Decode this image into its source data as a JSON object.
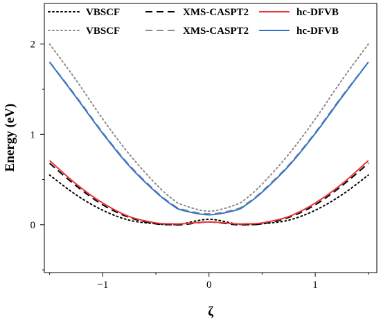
{
  "chart_data": {
    "type": "line",
    "xlabel": "ζ",
    "ylabel": "Energy (eV)",
    "xlim": [
      -1.55,
      1.58
    ],
    "ylim": [
      -0.53,
      2.45
    ],
    "x_ticks": [
      -1,
      0,
      1
    ],
    "x_tick_labels": [
      "−1",
      "0",
      "1"
    ],
    "y_ticks": [
      0,
      1,
      2
    ],
    "y_tick_labels": [
      "0",
      "1",
      "2"
    ],
    "grid": false,
    "legend": {
      "placement": "top",
      "columns": 3,
      "entries": [
        "VBSCF",
        "XMS-CASPT2",
        "hc-DFVB",
        "VBSCF",
        "XMS-CASPT2",
        "hc-DFVB"
      ]
    },
    "x": [
      -1.5,
      -1.25,
      -1.0,
      -0.75,
      -0.5,
      -0.35,
      -0.25,
      0.0,
      0.25,
      0.35,
      0.5,
      0.75,
      1.0,
      1.25,
      1.5
    ],
    "series": [
      {
        "name": "VBSCF",
        "state": "ground",
        "color": "#000000",
        "style": "dotted",
        "values": [
          0.55,
          0.33,
          0.16,
          0.05,
          0.01,
          0.0,
          0.01,
          0.06,
          0.01,
          0.0,
          0.01,
          0.05,
          0.16,
          0.33,
          0.55
        ]
      },
      {
        "name": "XMS-CASPT2",
        "state": "ground",
        "color": "#000000",
        "style": "dashed",
        "values": [
          0.68,
          0.43,
          0.22,
          0.08,
          0.01,
          0.0,
          0.0,
          0.03,
          0.0,
          0.0,
          0.01,
          0.08,
          0.22,
          0.43,
          0.68
        ]
      },
      {
        "name": "hc-DFVB",
        "state": "ground",
        "color": "#e8363c",
        "style": "solid",
        "values": [
          0.71,
          0.45,
          0.24,
          0.09,
          0.02,
          0.01,
          0.01,
          0.03,
          0.01,
          0.01,
          0.02,
          0.09,
          0.24,
          0.45,
          0.71
        ]
      },
      {
        "name": "VBSCF",
        "state": "excited",
        "color": "#8a8a8a",
        "style": "dotted",
        "values": [
          2.0,
          1.6,
          1.17,
          0.78,
          0.45,
          0.29,
          0.22,
          0.15,
          0.22,
          0.29,
          0.45,
          0.78,
          1.17,
          1.6,
          2.0
        ]
      },
      {
        "name": "XMS-CASPT2",
        "state": "excited",
        "color": "#8a8a8a",
        "style": "dashed",
        "values": [
          1.8,
          1.42,
          1.02,
          0.66,
          0.37,
          0.23,
          0.17,
          0.12,
          0.17,
          0.23,
          0.37,
          0.66,
          1.02,
          1.42,
          1.8
        ]
      },
      {
        "name": "hc-DFVB",
        "state": "excited",
        "color": "#2f73c9",
        "style": "solid",
        "values": [
          1.8,
          1.41,
          1.01,
          0.65,
          0.36,
          0.22,
          0.16,
          0.11,
          0.16,
          0.22,
          0.36,
          0.65,
          1.01,
          1.41,
          1.8
        ]
      }
    ]
  }
}
